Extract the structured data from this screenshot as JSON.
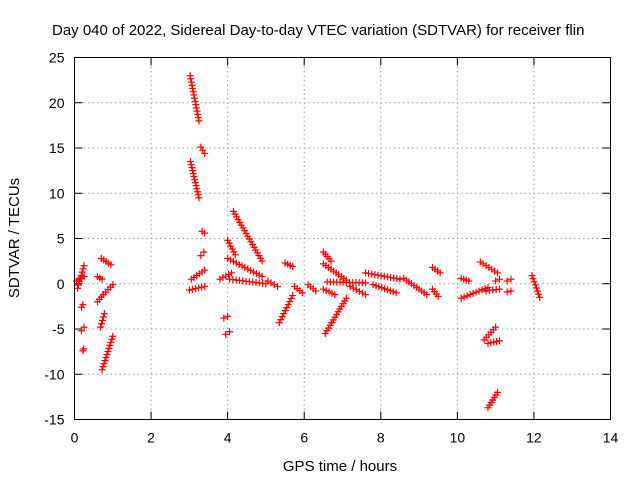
{
  "chart_data": {
    "type": "scatter",
    "title": "Day 040 of 2022, Sidereal Day-to-day VTEC variation (SDTVAR) for receiver flin",
    "xlabel": "GPS time / hours",
    "ylabel": "SDTVAR / TECUs",
    "xlim": [
      0,
      14
    ],
    "ylim": [
      -15,
      25
    ],
    "xticks": [
      0,
      2,
      4,
      6,
      8,
      10,
      12,
      14
    ],
    "yticks": [
      -15,
      -10,
      -5,
      0,
      5,
      10,
      15,
      20,
      25
    ],
    "xtick_labels": [
      "0",
      "2",
      "4",
      "6",
      "8",
      "10",
      "12",
      "14"
    ],
    "ytick_labels": [
      "-15",
      "-10",
      "-5",
      "0",
      "5",
      "10",
      "15",
      "20",
      "25"
    ],
    "grid": true,
    "marker": "+",
    "color": "#ff0000",
    "series": [
      {
        "name": "SDTVAR",
        "segments": [
          {
            "x": [
              0.05,
              0.25
            ],
            "y": [
              0.3,
              0.8
            ]
          },
          {
            "x": [
              0.08,
              0.25
            ],
            "y": [
              -0.5,
              2.0
            ]
          },
          {
            "x": [
              0.18,
              0.22
            ],
            "y": [
              -2.6,
              -2.3
            ]
          },
          {
            "x": [
              0.18,
              0.25
            ],
            "y": [
              -5.2,
              -4.8
            ]
          },
          {
            "x": [
              0.22,
              0.24
            ],
            "y": [
              -7.4,
              -7.2
            ]
          },
          {
            "x": [
              0.6,
              0.72
            ],
            "y": [
              0.8,
              0.5
            ]
          },
          {
            "x": [
              0.6,
              0.75
            ],
            "y": [
              -2.0,
              -1.2
            ]
          },
          {
            "x": [
              0.68,
              0.78
            ],
            "y": [
              -4.8,
              -3.3
            ]
          },
          {
            "x": [
              0.72,
              1.0
            ],
            "y": [
              -9.5,
              -5.8
            ]
          },
          {
            "x": [
              0.7,
              0.95
            ],
            "y": [
              2.8,
              2.1
            ]
          },
          {
            "x": [
              0.75,
              1.0
            ],
            "y": [
              -1.2,
              -0.1
            ]
          },
          {
            "x": [
              3.02,
              3.25
            ],
            "y": [
              23.0,
              18.0
            ]
          },
          {
            "x": [
              3.03,
              3.25
            ],
            "y": [
              13.5,
              9.5
            ]
          },
          {
            "x": [
              3.3,
              3.4
            ],
            "y": [
              15.1,
              14.4
            ]
          },
          {
            "x": [
              3.33,
              3.4
            ],
            "y": [
              5.8,
              5.6
            ]
          },
          {
            "x": [
              3.05,
              3.4
            ],
            "y": [
              0.5,
              1.5
            ]
          },
          {
            "x": [
              3.0,
              3.4
            ],
            "y": [
              -0.7,
              -0.3
            ]
          },
          {
            "x": [
              3.3,
              3.38
            ],
            "y": [
              3.1,
              3.5
            ]
          },
          {
            "x": [
              3.8,
              4.1
            ],
            "y": [
              0.5,
              1.2
            ]
          },
          {
            "x": [
              3.9,
              4.0
            ],
            "y": [
              -3.8,
              -3.6
            ]
          },
          {
            "x": [
              3.95,
              4.05
            ],
            "y": [
              -5.6,
              -5.3
            ]
          },
          {
            "x": [
              4.0,
              4.2
            ],
            "y": [
              4.8,
              3.2
            ]
          },
          {
            "x": [
              4.15,
              4.9
            ],
            "y": [
              8.0,
              2.5
            ]
          },
          {
            "x": [
              4.0,
              4.9
            ],
            "y": [
              2.8,
              0.8
            ]
          },
          {
            "x": [
              4.05,
              5.0
            ],
            "y": [
              0.5,
              0.0
            ]
          },
          {
            "x": [
              5.05,
              5.3
            ],
            "y": [
              0.3,
              -0.3
            ]
          },
          {
            "x": [
              5.35,
              5.7
            ],
            "y": [
              -4.3,
              -1.3
            ]
          },
          {
            "x": [
              5.5,
              5.7
            ],
            "y": [
              2.3,
              1.9
            ]
          },
          {
            "x": [
              5.75,
              5.95
            ],
            "y": [
              -0.3,
              -1.0
            ]
          },
          {
            "x": [
              6.1,
              6.3
            ],
            "y": [
              -0.1,
              -0.8
            ]
          },
          {
            "x": [
              6.55,
              7.1
            ],
            "y": [
              -5.5,
              -1.6
            ]
          },
          {
            "x": [
              6.5,
              6.7
            ],
            "y": [
              3.5,
              2.5
            ]
          },
          {
            "x": [
              6.5,
              7.1
            ],
            "y": [
              2.2,
              0.4
            ]
          },
          {
            "x": [
              6.5,
              6.8
            ],
            "y": [
              -0.6,
              -1.2
            ]
          },
          {
            "x": [
              6.6,
              7.6
            ],
            "y": [
              0.2,
              0.1
            ]
          },
          {
            "x": [
              7.2,
              7.6
            ],
            "y": [
              -0.3,
              -1.2
            ]
          },
          {
            "x": [
              7.6,
              8.5
            ],
            "y": [
              1.2,
              0.5
            ]
          },
          {
            "x": [
              7.8,
              8.4
            ],
            "y": [
              -0.1,
              -1.0
            ]
          },
          {
            "x": [
              8.6,
              9.2
            ],
            "y": [
              0.6,
              -1.2
            ]
          },
          {
            "x": [
              9.35,
              9.5
            ],
            "y": [
              -0.6,
              -1.4
            ]
          },
          {
            "x": [
              9.35,
              9.55
            ],
            "y": [
              1.8,
              1.2
            ]
          },
          {
            "x": [
              10.1,
              10.3
            ],
            "y": [
              0.6,
              0.3
            ]
          },
          {
            "x": [
              10.1,
              10.8
            ],
            "y": [
              -1.6,
              -0.4
            ]
          },
          {
            "x": [
              10.6,
              11.05
            ],
            "y": [
              2.4,
              1.2
            ]
          },
          {
            "x": [
              10.7,
              11.0
            ],
            "y": [
              -6.2,
              -4.8
            ]
          },
          {
            "x": [
              10.8,
              11.1
            ],
            "y": [
              -6.6,
              -6.3
            ]
          },
          {
            "x": [
              10.75,
              11.1
            ],
            "y": [
              -0.8,
              -0.6
            ]
          },
          {
            "x": [
              10.8,
              11.05
            ],
            "y": [
              -13.7,
              -12.0
            ]
          },
          {
            "x": [
              11.0,
              11.1
            ],
            "y": [
              0.3,
              0.5
            ]
          },
          {
            "x": [
              11.3,
              11.4
            ],
            "y": [
              0.3,
              0.5
            ]
          },
          {
            "x": [
              11.3,
              11.4
            ],
            "y": [
              -0.9,
              -0.8
            ]
          },
          {
            "x": [
              11.95,
              12.15
            ],
            "y": [
              0.9,
              -1.5
            ]
          }
        ]
      }
    ]
  }
}
